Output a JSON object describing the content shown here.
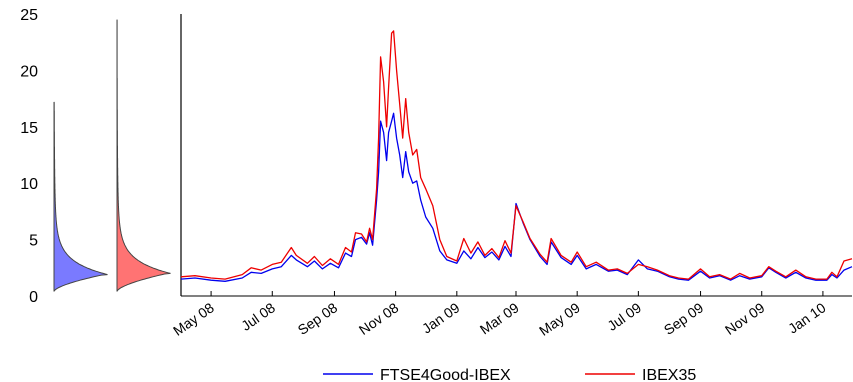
{
  "chart_data": {
    "type": "line",
    "title": "",
    "xlabel": "",
    "ylabel": "",
    "ylim": [
      0,
      25
    ],
    "y_ticks": [
      0,
      5,
      10,
      15,
      20,
      25
    ],
    "x_range": [
      "2008-04-01",
      "2010-01-30"
    ],
    "x_tick_labels": [
      {
        "date": "2008-05-01",
        "label": "May 08"
      },
      {
        "date": "2008-07-01",
        "label": "Jul 08"
      },
      {
        "date": "2008-09-01",
        "label": "Sep 08"
      },
      {
        "date": "2008-11-01",
        "label": "Nov 08"
      },
      {
        "date": "2009-01-01",
        "label": "Jan 09"
      },
      {
        "date": "2009-03-01",
        "label": "Mar 09"
      },
      {
        "date": "2009-05-01",
        "label": "May 09"
      },
      {
        "date": "2009-07-01",
        "label": "Jul 09"
      },
      {
        "date": "2009-09-01",
        "label": "Sep 09"
      },
      {
        "date": "2009-11-01",
        "label": "Nov 09"
      },
      {
        "date": "2010-01-01",
        "label": "Jan 10"
      }
    ],
    "grid": false,
    "legend_position": "bottom",
    "series": [
      {
        "name": "FTSE4Good-IBEX",
        "color": "#0000ee",
        "points": [
          [
            "2008-04-01",
            1.5
          ],
          [
            "2008-04-15",
            1.6
          ],
          [
            "2008-05-01",
            1.4
          ],
          [
            "2008-05-15",
            1.3
          ],
          [
            "2008-06-01",
            1.6
          ],
          [
            "2008-06-10",
            2.1
          ],
          [
            "2008-06-20",
            2.0
          ],
          [
            "2008-07-01",
            2.4
          ],
          [
            "2008-07-10",
            2.6
          ],
          [
            "2008-07-20",
            3.6
          ],
          [
            "2008-07-25",
            3.2
          ],
          [
            "2008-08-05",
            2.6
          ],
          [
            "2008-08-12",
            3.1
          ],
          [
            "2008-08-20",
            2.4
          ],
          [
            "2008-08-28",
            2.9
          ],
          [
            "2008-09-05",
            2.5
          ],
          [
            "2008-09-12",
            3.8
          ],
          [
            "2008-09-18",
            3.5
          ],
          [
            "2008-09-22",
            5.0
          ],
          [
            "2008-09-28",
            5.2
          ],
          [
            "2008-10-03",
            4.6
          ],
          [
            "2008-10-06",
            5.6
          ],
          [
            "2008-10-09",
            4.5
          ],
          [
            "2008-10-13",
            8.5
          ],
          [
            "2008-10-15",
            11.0
          ],
          [
            "2008-10-17",
            15.5
          ],
          [
            "2008-10-20",
            14.5
          ],
          [
            "2008-10-23",
            12.0
          ],
          [
            "2008-10-25",
            14.5
          ],
          [
            "2008-10-28",
            15.5
          ],
          [
            "2008-10-30",
            16.2
          ],
          [
            "2008-11-02",
            14.0
          ],
          [
            "2008-11-05",
            12.5
          ],
          [
            "2008-11-08",
            10.5
          ],
          [
            "2008-11-11",
            12.8
          ],
          [
            "2008-11-14",
            11.0
          ],
          [
            "2008-11-18",
            10.0
          ],
          [
            "2008-11-22",
            10.2
          ],
          [
            "2008-11-26",
            8.5
          ],
          [
            "2008-12-01",
            7.0
          ],
          [
            "2008-12-08",
            6.0
          ],
          [
            "2008-12-15",
            4.0
          ],
          [
            "2008-12-22",
            3.2
          ],
          [
            "2009-01-01",
            2.9
          ],
          [
            "2009-01-08",
            4.0
          ],
          [
            "2009-01-15",
            3.3
          ],
          [
            "2009-01-22",
            4.3
          ],
          [
            "2009-01-29",
            3.4
          ],
          [
            "2009-02-05",
            3.9
          ],
          [
            "2009-02-12",
            3.2
          ],
          [
            "2009-02-18",
            4.4
          ],
          [
            "2009-02-24",
            3.5
          ],
          [
            "2009-03-01",
            8.2
          ],
          [
            "2009-03-08",
            6.5
          ],
          [
            "2009-03-15",
            5.0
          ],
          [
            "2009-03-25",
            3.5
          ],
          [
            "2009-04-01",
            2.8
          ],
          [
            "2009-04-05",
            4.8
          ],
          [
            "2009-04-15",
            3.4
          ],
          [
            "2009-04-25",
            2.8
          ],
          [
            "2009-05-01",
            3.6
          ],
          [
            "2009-05-10",
            2.4
          ],
          [
            "2009-05-20",
            2.8
          ],
          [
            "2009-06-01",
            2.2
          ],
          [
            "2009-06-10",
            2.3
          ],
          [
            "2009-06-20",
            1.9
          ],
          [
            "2009-07-01",
            3.2
          ],
          [
            "2009-07-10",
            2.4
          ],
          [
            "2009-07-20",
            2.2
          ],
          [
            "2009-08-01",
            1.7
          ],
          [
            "2009-08-10",
            1.5
          ],
          [
            "2009-08-20",
            1.4
          ],
          [
            "2009-09-01",
            2.2
          ],
          [
            "2009-09-10",
            1.6
          ],
          [
            "2009-09-20",
            1.8
          ],
          [
            "2009-10-01",
            1.4
          ],
          [
            "2009-10-10",
            1.8
          ],
          [
            "2009-10-20",
            1.5
          ],
          [
            "2009-11-01",
            1.7
          ],
          [
            "2009-11-08",
            2.5
          ],
          [
            "2009-11-15",
            2.1
          ],
          [
            "2009-11-25",
            1.6
          ],
          [
            "2009-12-05",
            2.1
          ],
          [
            "2009-12-15",
            1.6
          ],
          [
            "2009-12-25",
            1.4
          ],
          [
            "2010-01-05",
            1.4
          ],
          [
            "2010-01-10",
            1.9
          ],
          [
            "2010-01-15",
            1.6
          ],
          [
            "2010-01-22",
            2.3
          ],
          [
            "2010-01-30",
            2.6
          ]
        ]
      },
      {
        "name": "IBEX35",
        "color": "#ee0000",
        "points": [
          [
            "2008-04-01",
            1.7
          ],
          [
            "2008-04-15",
            1.8
          ],
          [
            "2008-05-01",
            1.6
          ],
          [
            "2008-05-15",
            1.5
          ],
          [
            "2008-06-01",
            1.9
          ],
          [
            "2008-06-10",
            2.5
          ],
          [
            "2008-06-20",
            2.3
          ],
          [
            "2008-07-01",
            2.8
          ],
          [
            "2008-07-10",
            3.0
          ],
          [
            "2008-07-20",
            4.3
          ],
          [
            "2008-07-25",
            3.6
          ],
          [
            "2008-08-05",
            2.9
          ],
          [
            "2008-08-12",
            3.5
          ],
          [
            "2008-08-20",
            2.7
          ],
          [
            "2008-08-28",
            3.3
          ],
          [
            "2008-09-05",
            2.8
          ],
          [
            "2008-09-12",
            4.3
          ],
          [
            "2008-09-18",
            3.9
          ],
          [
            "2008-09-22",
            5.6
          ],
          [
            "2008-09-28",
            5.5
          ],
          [
            "2008-10-03",
            4.8
          ],
          [
            "2008-10-06",
            6.0
          ],
          [
            "2008-10-09",
            5.0
          ],
          [
            "2008-10-13",
            9.5
          ],
          [
            "2008-10-15",
            14.0
          ],
          [
            "2008-10-17",
            21.2
          ],
          [
            "2008-10-20",
            19.0
          ],
          [
            "2008-10-23",
            15.0
          ],
          [
            "2008-10-25",
            18.5
          ],
          [
            "2008-10-28",
            23.3
          ],
          [
            "2008-10-30",
            23.5
          ],
          [
            "2008-11-02",
            20.0
          ],
          [
            "2008-11-05",
            17.0
          ],
          [
            "2008-11-08",
            14.0
          ],
          [
            "2008-11-11",
            17.5
          ],
          [
            "2008-11-14",
            14.5
          ],
          [
            "2008-11-18",
            12.5
          ],
          [
            "2008-11-22",
            13.0
          ],
          [
            "2008-11-26",
            10.5
          ],
          [
            "2008-12-01",
            9.5
          ],
          [
            "2008-12-08",
            8.0
          ],
          [
            "2008-12-15",
            5.0
          ],
          [
            "2008-12-22",
            3.5
          ],
          [
            "2009-01-01",
            3.1
          ],
          [
            "2009-01-08",
            5.1
          ],
          [
            "2009-01-15",
            3.8
          ],
          [
            "2009-01-22",
            4.8
          ],
          [
            "2009-01-29",
            3.6
          ],
          [
            "2009-02-05",
            4.2
          ],
          [
            "2009-02-12",
            3.4
          ],
          [
            "2009-02-18",
            4.9
          ],
          [
            "2009-02-24",
            3.8
          ],
          [
            "2009-03-01",
            8.0
          ],
          [
            "2009-03-08",
            6.6
          ],
          [
            "2009-03-15",
            5.1
          ],
          [
            "2009-03-25",
            3.7
          ],
          [
            "2009-04-01",
            3.0
          ],
          [
            "2009-04-05",
            5.1
          ],
          [
            "2009-04-15",
            3.6
          ],
          [
            "2009-04-25",
            3.0
          ],
          [
            "2009-05-01",
            3.9
          ],
          [
            "2009-05-10",
            2.6
          ],
          [
            "2009-05-20",
            3.0
          ],
          [
            "2009-06-01",
            2.3
          ],
          [
            "2009-06-10",
            2.4
          ],
          [
            "2009-06-20",
            2.0
          ],
          [
            "2009-07-01",
            2.8
          ],
          [
            "2009-07-10",
            2.6
          ],
          [
            "2009-07-20",
            2.3
          ],
          [
            "2009-08-01",
            1.8
          ],
          [
            "2009-08-10",
            1.6
          ],
          [
            "2009-08-20",
            1.5
          ],
          [
            "2009-09-01",
            2.4
          ],
          [
            "2009-09-10",
            1.7
          ],
          [
            "2009-09-20",
            1.9
          ],
          [
            "2009-10-01",
            1.5
          ],
          [
            "2009-10-10",
            2.0
          ],
          [
            "2009-10-20",
            1.6
          ],
          [
            "2009-11-01",
            1.8
          ],
          [
            "2009-11-08",
            2.6
          ],
          [
            "2009-11-15",
            2.2
          ],
          [
            "2009-11-25",
            1.7
          ],
          [
            "2009-12-05",
            2.3
          ],
          [
            "2009-12-15",
            1.7
          ],
          [
            "2009-12-25",
            1.5
          ],
          [
            "2010-01-05",
            1.5
          ],
          [
            "2010-01-10",
            2.1
          ],
          [
            "2010-01-15",
            1.7
          ],
          [
            "2010-01-22",
            3.1
          ],
          [
            "2010-01-30",
            3.3
          ]
        ]
      }
    ],
    "density_panels": [
      {
        "series": "FTSE4Good-IBEX",
        "fill_color": "#7a7aff",
        "mode": 1.9,
        "upper": 17.2
      },
      {
        "series": "IBEX35",
        "fill_color": "#ff7373",
        "mode": 2.0,
        "upper": 24.5
      }
    ]
  }
}
